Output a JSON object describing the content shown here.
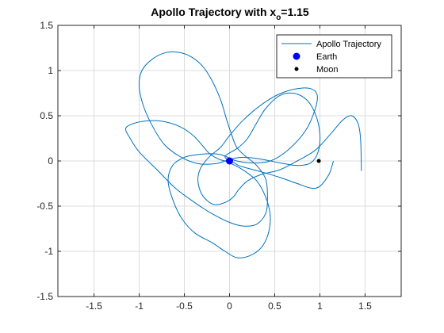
{
  "chart_data": {
    "type": "line",
    "title": "Apollo Trajectory with x",
    "title_subscript": "o",
    "title_suffix": "=1.15",
    "xlim": [
      -1.9,
      1.9
    ],
    "ylim": [
      -1.5,
      1.5
    ],
    "xticks": [
      -1.5,
      -1,
      -0.5,
      0,
      0.5,
      1,
      1.5
    ],
    "yticks": [
      -1.5,
      -1,
      -0.5,
      0,
      0.5,
      1,
      1.5
    ],
    "xtick_labels": [
      "-1.5",
      "-1",
      "-0.5",
      "0",
      "0.5",
      "1",
      "1.5"
    ],
    "ytick_labels": [
      "-1.5",
      "-1",
      "-0.5",
      "0",
      "0.5",
      "1",
      "1.5"
    ],
    "grid": true,
    "legend_location": "top-right",
    "series": [
      {
        "name": "Apollo Trajectory",
        "kind": "line",
        "color": "#0072BD",
        "x": [
          1.15,
          1.1,
          1.0,
          0.9,
          0.75,
          0.55,
          0.35,
          0.2,
          0.1,
          0.05,
          0.0,
          -0.05,
          -0.03,
          0.02,
          0.1,
          0.2,
          0.3,
          0.4,
          0.55,
          0.7,
          0.85,
          0.95,
          1.0,
          0.98,
          0.9,
          0.75,
          0.55,
          0.35,
          0.18,
          0.05,
          -0.05,
          -0.15,
          -0.35,
          -0.55,
          -0.72,
          -0.85,
          -0.95,
          -1.0,
          -0.97,
          -0.85,
          -0.7,
          -0.55,
          -0.42,
          -0.3,
          -0.2,
          -0.1,
          -0.03,
          0.02,
          0.08,
          0.18,
          0.3,
          0.4,
          0.42,
          0.4,
          0.3,
          0.15,
          0.0,
          -0.2,
          -0.4,
          -0.6,
          -0.8,
          -1.0,
          -1.1,
          -1.15,
          -1.1,
          -0.95,
          -0.75,
          -0.55,
          -0.4,
          -0.3,
          -0.22,
          -0.12,
          -0.05,
          0.02,
          0.15,
          0.3,
          0.4,
          0.45,
          0.43,
          0.35,
          0.22,
          0.08,
          -0.05,
          -0.2,
          -0.38,
          -0.52,
          -0.62,
          -0.68,
          -0.63,
          -0.5,
          -0.35,
          -0.2,
          -0.1,
          -0.02,
          0.02,
          0.08,
          0.2,
          0.35,
          0.5,
          0.68,
          0.85,
          0.95,
          0.97,
          0.9,
          0.75,
          0.55,
          0.35,
          0.15,
          0.0,
          -0.1,
          -0.22,
          -0.32,
          -0.35,
          -0.3,
          -0.18,
          -0.05,
          0.04,
          0.1,
          0.2,
          0.35,
          0.55,
          0.75,
          0.95,
          1.12,
          1.25,
          1.35,
          1.42,
          1.45,
          1.46
        ],
        "y": [
          0.0,
          -0.15,
          -0.28,
          -0.3,
          -0.25,
          -0.18,
          -0.12,
          -0.08,
          -0.05,
          -0.02,
          0.0,
          0.04,
          0.07,
          0.1,
          0.15,
          0.25,
          0.42,
          0.58,
          0.72,
          0.75,
          0.68,
          0.52,
          0.3,
          0.1,
          -0.02,
          -0.05,
          -0.02,
          0.02,
          0.04,
          0.03,
          0.0,
          -0.03,
          -0.03,
          0.05,
          0.18,
          0.38,
          0.6,
          0.82,
          1.0,
          1.13,
          1.2,
          1.2,
          1.15,
          1.05,
          0.9,
          0.68,
          0.45,
          0.3,
          0.15,
          0.05,
          -0.05,
          -0.2,
          -0.4,
          -0.58,
          -0.7,
          -0.72,
          -0.68,
          -0.58,
          -0.45,
          -0.3,
          -0.1,
          0.1,
          0.25,
          0.35,
          0.4,
          0.44,
          0.44,
          0.38,
          0.28,
          0.17,
          0.08,
          0.02,
          0.0,
          -0.03,
          -0.1,
          -0.22,
          -0.4,
          -0.6,
          -0.8,
          -0.96,
          -1.05,
          -1.07,
          -1.0,
          -0.9,
          -0.8,
          -0.65,
          -0.45,
          -0.22,
          -0.05,
          0.04,
          0.07,
          0.08,
          0.07,
          0.04,
          0.02,
          0.0,
          -0.02,
          -0.02,
          0.02,
          0.15,
          0.35,
          0.58,
          0.73,
          0.8,
          0.8,
          0.74,
          0.62,
          0.45,
          0.28,
          0.15,
          0.05,
          -0.08,
          -0.22,
          -0.38,
          -0.48,
          -0.46,
          -0.4,
          -0.32,
          -0.22,
          -0.15,
          -0.1,
          0.0,
          0.12,
          0.3,
          0.45,
          0.5,
          0.42,
          0.25,
          -0.11
        ]
      },
      {
        "name": "Earth",
        "kind": "marker",
        "color": "#0000FF",
        "x": [
          0
        ],
        "y": [
          0
        ]
      },
      {
        "name": "Moon",
        "kind": "marker",
        "color": "#000000",
        "x": [
          0.988
        ],
        "y": [
          0
        ]
      }
    ]
  }
}
